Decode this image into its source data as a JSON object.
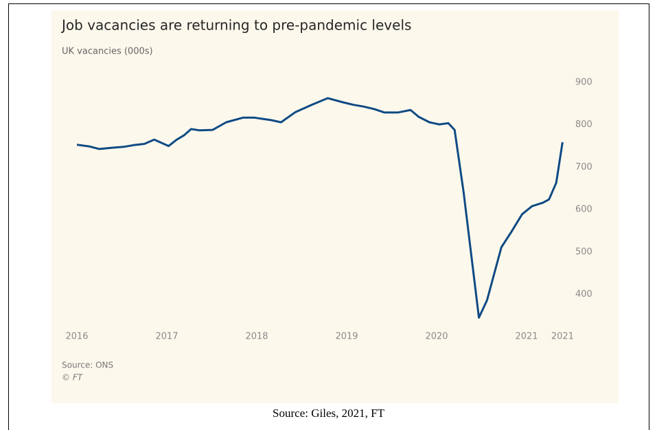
{
  "chart_data": {
    "type": "line",
    "title": "Job vacancies are returning to pre-pandemic levels",
    "subtitle": "UK vacancies (000s)",
    "source": "Source: ONS",
    "credit": "© FT",
    "x": [
      2016.0,
      2016.14,
      2016.25,
      2016.4,
      2016.52,
      2016.63,
      2016.75,
      2016.86,
      2017.02,
      2017.11,
      2017.19,
      2017.27,
      2017.36,
      2017.51,
      2017.66,
      2017.85,
      2017.97,
      2018.16,
      2018.27,
      2018.43,
      2018.62,
      2018.79,
      2018.96,
      2019.08,
      2019.19,
      2019.31,
      2019.42,
      2019.57,
      2019.71,
      2019.8,
      2019.92,
      2020.03,
      2020.13,
      2020.2,
      2020.3,
      2020.47,
      2020.56,
      2020.72,
      2020.83,
      2020.95,
      2021.06,
      2021.18,
      2021.25,
      2021.33,
      2021.4
    ],
    "series": [
      {
        "name": "UK vacancies",
        "color": "#0e4a84",
        "values": [
          753,
          749,
          743,
          746,
          748,
          752,
          755,
          765,
          750,
          765,
          775,
          790,
          787,
          788,
          806,
          817,
          817,
          811,
          806,
          830,
          848,
          863,
          853,
          847,
          843,
          837,
          829,
          829,
          835,
          819,
          806,
          801,
          804,
          788,
          641,
          345,
          386,
          511,
          547,
          589,
          608,
          616,
          624,
          663,
          759
        ]
      }
    ],
    "xlim": [
      2015.9,
      2021.5
    ],
    "xticks": [
      2016,
      2017,
      2018,
      2019,
      2020,
      2021,
      {
        "value": 2021.4,
        "label": "2021"
      }
    ],
    "ylim": [
      330,
      925
    ],
    "yticks": [
      400,
      500,
      600,
      700,
      800,
      900
    ],
    "grid": false
  },
  "caption": "Source: Giles, 2021, FT"
}
